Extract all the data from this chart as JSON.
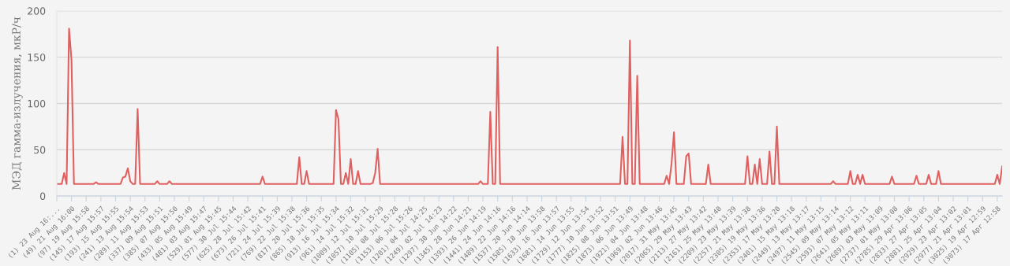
{
  "chart_data": {
    "type": "line",
    "ylabel": "МЭД гамма-излучения, мкР/ч",
    "ylim": [
      0,
      200
    ],
    "yticks": [
      0,
      50,
      100,
      150,
      200
    ],
    "grid": "y",
    "marker": "none",
    "line_style": "solid",
    "categories": [
      "(1) 23 Aug 16:...",
      null,
      null,
      null,
      null,
      null,
      "(49) 21 Aug 16:00",
      null,
      null,
      null,
      null,
      null,
      "(97) 19 Aug 15:58",
      null,
      null,
      null,
      null,
      null,
      "(145) 17 Aug 15:57",
      null,
      null,
      null,
      null,
      null,
      "(193) 15 Aug 15:55",
      null,
      null,
      null,
      null,
      null,
      "(241) 13 Aug 15:54",
      null,
      null,
      null,
      null,
      null,
      "(289) 11 Aug 15:53",
      null,
      null,
      null,
      null,
      null,
      "(337) 09 Aug 15:51",
      null,
      null,
      null,
      null,
      null,
      "(385) 07 Aug 15:50",
      null,
      null,
      null,
      null,
      null,
      "(433) 05 Aug 15:49",
      null,
      null,
      null,
      null,
      null,
      "(481) 03 Aug 15:47",
      null,
      null,
      null,
      null,
      null,
      "(529) 01 Aug 15:45",
      null,
      null,
      null,
      null,
      null,
      "(577) 30 Jul 15:44",
      null,
      null,
      null,
      null,
      null,
      "(625) 28 Jul 15:42",
      null,
      null,
      null,
      null,
      null,
      "(673) 26 Jul 15:41",
      null,
      null,
      null,
      null,
      null,
      "(721) 24 Jul 15:39",
      null,
      null,
      null,
      null,
      null,
      "(769) 22 Jul 15:38",
      null,
      null,
      null,
      null,
      null,
      "(817) 20 Jul 15:36",
      null,
      null,
      null,
      null,
      null,
      "(865) 18 Jul 15:35",
      null,
      null,
      null,
      null,
      null,
      "(913) 16 Jul 15:34",
      null,
      null,
      null,
      null,
      null,
      "(961) 14 Jul 15:32",
      null,
      null,
      null,
      null,
      null,
      "(1009) 12 Jul 15:31",
      null,
      null,
      null,
      null,
      null,
      "(1057) 10 Jul 15:29",
      null,
      null,
      null,
      null,
      null,
      "(1105) 08 Jul 15:28",
      null,
      null,
      null,
      null,
      null,
      "(1153) 06 Jul 15:26",
      null,
      null,
      null,
      null,
      null,
      "(1201) 04 Jul 14:25",
      null,
      null,
      null,
      null,
      null,
      "(1249) 02 Jul 14:23",
      null,
      null,
      null,
      null,
      null,
      "(1297) 30 Jun 14:22",
      null,
      null,
      null,
      null,
      null,
      "(1345) 28 Jun 14:21",
      null,
      null,
      null,
      null,
      null,
      "(1393) 26 Jun 14:19",
      null,
      null,
      null,
      null,
      null,
      "(1441) 24 Jun 14:16",
      null,
      null,
      null,
      null,
      null,
      "(1489) 22 Jun 14:16",
      null,
      null,
      null,
      null,
      null,
      "(1537) 20 Jun 14:14",
      null,
      null,
      null,
      null,
      null,
      "(1585) 18 Jun 13:58",
      null,
      null,
      null,
      null,
      null,
      "(1633) 16 Jun 13:57",
      null,
      null,
      null,
      null,
      null,
      "(1681) 14 Jun 13:55",
      null,
      null,
      null,
      null,
      null,
      "(1729) 12 Jun 13:54",
      null,
      null,
      null,
      null,
      null,
      "(1777) 10 Jun 13:52",
      null,
      null,
      null,
      null,
      null,
      "(1825) 08 Jun 13:51",
      null,
      null,
      null,
      null,
      null,
      "(1873) 06 Jun 13:49",
      null,
      null,
      null,
      null,
      null,
      "(1921) 04 Jun 13:48",
      null,
      null,
      null,
      null,
      null,
      "(1969) 02 Jun 13:46",
      null,
      null,
      null,
      null,
      null,
      "(2017) 31 May 13:45",
      null,
      null,
      null,
      null,
      null,
      "(2065) 29 May 13:43",
      null,
      null,
      null,
      null,
      null,
      "(2113) 27 May 13:42",
      null,
      null,
      null,
      null,
      null,
      "(2161) 25 May 13:40",
      null,
      null,
      null,
      null,
      null,
      "(2209) 23 May 13:39",
      null,
      null,
      null,
      null,
      null,
      "(2257) 21 May 13:38",
      null,
      null,
      null,
      null,
      null,
      "(2305) 19 May 13:36",
      null,
      null,
      null,
      null,
      null,
      "(2353) 17 May 13:20",
      null,
      null,
      null,
      null,
      null,
      "(2401) 15 May 13:18",
      null,
      null,
      null,
      null,
      null,
      "(2449) 13 May 13:17",
      null,
      null,
      null,
      null,
      null,
      "(2497) 11 May 13:15",
      null,
      null,
      null,
      null,
      null,
      "(2545) 09 May 13:14",
      null,
      null,
      null,
      null,
      null,
      "(2593) 07 May 13:12",
      null,
      null,
      null,
      null,
      null,
      "(2641) 05 May 13:11",
      null,
      null,
      null,
      null,
      null,
      "(2689) 03 May 13:09",
      null,
      null,
      null,
      null,
      null,
      "(2737) 01 May 13:08",
      null,
      null,
      null,
      null,
      null,
      "(2785) 29 Apr 13:06",
      null,
      null,
      null,
      null,
      null,
      "(2833) 27 Apr 13:05",
      null,
      null,
      null,
      null,
      null,
      "(2881) 25 Apr 13:04",
      null,
      null,
      null,
      null,
      null,
      "(2929) 23 Apr 13:02",
      null,
      null,
      null,
      null,
      null,
      "(2977) 21 Apr 13:01",
      null,
      null,
      null,
      null,
      null,
      "(3025) 19 Apr 12:59",
      null,
      null,
      null,
      null,
      null,
      "(3073) 17 Apr 12:58",
      null,
      null
    ],
    "series": [
      {
        "color": "#e06060",
        "values": [
          13,
          13,
          13,
          25,
          13,
          181,
          147,
          13,
          13,
          13,
          13,
          13,
          13,
          13,
          13,
          13,
          15,
          13,
          13,
          13,
          13,
          13,
          13,
          13,
          13,
          13,
          13,
          20,
          21,
          30,
          16,
          13,
          13,
          94,
          13,
          13,
          13,
          13,
          13,
          13,
          13,
          16,
          13,
          13,
          13,
          13,
          16,
          13,
          13,
          13,
          13,
          13,
          13,
          13,
          13,
          13,
          13,
          13,
          13,
          13,
          13,
          13,
          13,
          13,
          13,
          13,
          13,
          13,
          13,
          13,
          13,
          13,
          13,
          13,
          13,
          13,
          13,
          13,
          13,
          13,
          13,
          13,
          13,
          13,
          21,
          13,
          13,
          13,
          13,
          13,
          13,
          13,
          13,
          13,
          13,
          13,
          13,
          13,
          13,
          42,
          13,
          13,
          27,
          13,
          13,
          13,
          13,
          13,
          13,
          13,
          13,
          13,
          13,
          13,
          93,
          83,
          13,
          13,
          25,
          13,
          40,
          13,
          13,
          27,
          13,
          13,
          13,
          13,
          13,
          14,
          25,
          51,
          13,
          13,
          13,
          13,
          13,
          13,
          13,
          13,
          13,
          13,
          13,
          13,
          13,
          13,
          13,
          13,
          13,
          13,
          13,
          13,
          13,
          13,
          13,
          13,
          13,
          13,
          13,
          13,
          13,
          13,
          13,
          13,
          13,
          13,
          13,
          13,
          13,
          13,
          13,
          13,
          13,
          16,
          13,
          13,
          13,
          91,
          13,
          13,
          161,
          13,
          13,
          13,
          13,
          13,
          13,
          13,
          13,
          13,
          13,
          13,
          13,
          13,
          13,
          13,
          13,
          13,
          13,
          13,
          13,
          13,
          13,
          13,
          13,
          13,
          13,
          13,
          13,
          13,
          13,
          13,
          13,
          13,
          13,
          13,
          13,
          13,
          13,
          13,
          13,
          13,
          13,
          13,
          13,
          13,
          13,
          13,
          13,
          13,
          13,
          64,
          13,
          13,
          168,
          13,
          13,
          130,
          13,
          13,
          13,
          13,
          13,
          13,
          13,
          13,
          13,
          13,
          13,
          22,
          13,
          35,
          69,
          13,
          13,
          13,
          13,
          43,
          46,
          13,
          13,
          13,
          13,
          13,
          13,
          13,
          34,
          13,
          13,
          13,
          13,
          13,
          13,
          13,
          13,
          13,
          13,
          13,
          13,
          13,
          13,
          13,
          43,
          13,
          13,
          34,
          13,
          40,
          13,
          13,
          13,
          48,
          13,
          13,
          75,
          13,
          13,
          13,
          13,
          13,
          13,
          13,
          13,
          13,
          13,
          13,
          13,
          13,
          13,
          13,
          13,
          13,
          13,
          13,
          13,
          13,
          13,
          16,
          13,
          13,
          13,
          13,
          13,
          13,
          27,
          13,
          13,
          23,
          13,
          23,
          13,
          13,
          13,
          13,
          13,
          13,
          13,
          13,
          13,
          13,
          13,
          21,
          13,
          13,
          13,
          13,
          13,
          13,
          13,
          13,
          13,
          22,
          13,
          13,
          13,
          13,
          23,
          13,
          13,
          13,
          27,
          13,
          13,
          13,
          13,
          13,
          13,
          13,
          13,
          13,
          13,
          13,
          13,
          13,
          13,
          13,
          13,
          13,
          13,
          13,
          13,
          13,
          13,
          13,
          23,
          13,
          32
        ]
      }
    ]
  }
}
